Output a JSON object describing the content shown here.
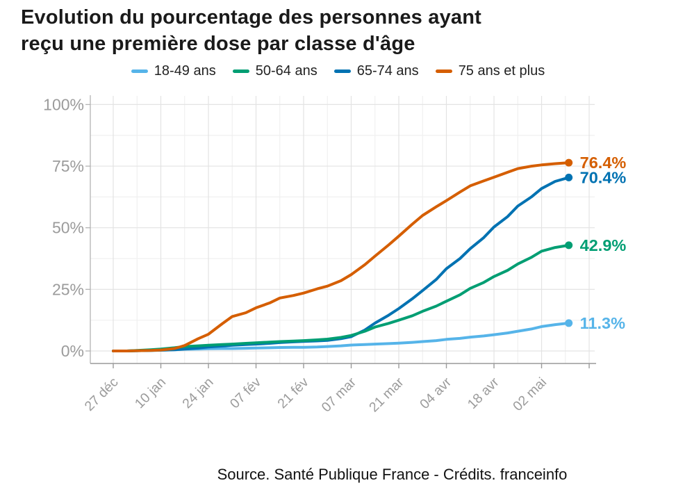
{
  "title": {
    "line1": "Evolution du pourcentage des personnes ayant",
    "line2": "reçu une première dose par classe d'âge"
  },
  "source_text": "Source. Santé Publique France - Crédits. franceinfo",
  "colors": {
    "age_18_49": "#56B4E9",
    "age_50_64": "#009E73",
    "age_65_74": "#0072B2",
    "age_75_plus": "#D55E00",
    "axis_text": "#9b9b9b",
    "axis_line": "#9a9a9a",
    "grid_major": "#e3e3e3",
    "grid_minor": "#f0f0f0",
    "title_text": "#1a1a1a"
  },
  "chart_data": {
    "type": "line",
    "title": "Evolution du pourcentage des personnes ayant reçu une première dose par classe d'âge",
    "xlabel": "",
    "ylabel": "",
    "ylim": [
      0,
      100
    ],
    "grid": true,
    "legend_position": "top",
    "x_unit": "days since 27 déc",
    "x_ticks": [
      {
        "day": 0,
        "label": "27 déc"
      },
      {
        "day": 14,
        "label": "10 jan"
      },
      {
        "day": 28,
        "label": "24 jan"
      },
      {
        "day": 42,
        "label": "07 fév"
      },
      {
        "day": 56,
        "label": "21 fév"
      },
      {
        "day": 70,
        "label": "07 mar"
      },
      {
        "day": 84,
        "label": "21 mar"
      },
      {
        "day": 98,
        "label": "04 avr"
      },
      {
        "day": 112,
        "label": "18 avr"
      },
      {
        "day": 126,
        "label": "02 mai"
      },
      {
        "day": 140,
        "label": ""
      }
    ],
    "x_minor_days": [
      7,
      21,
      35,
      49,
      63,
      77,
      91,
      105,
      119,
      133
    ],
    "y_ticks": [
      {
        "value": 0,
        "label": "0%"
      },
      {
        "value": 25,
        "label": "25%"
      },
      {
        "value": 50,
        "label": "50%"
      },
      {
        "value": 75,
        "label": "75%"
      },
      {
        "value": 100,
        "label": "100%"
      }
    ],
    "y_minor": [
      12.5,
      37.5,
      62.5,
      87.5
    ],
    "days": [
      0,
      4,
      7,
      11,
      14,
      18,
      21,
      25,
      28,
      32,
      35,
      39,
      42,
      46,
      49,
      53,
      56,
      60,
      63,
      67,
      70,
      74,
      77,
      81,
      84,
      88,
      91,
      95,
      98,
      102,
      105,
      109,
      112,
      116,
      119,
      123,
      126,
      130,
      134
    ],
    "series": [
      {
        "name": "18-49 ans",
        "color": "#56B4E9",
        "end_label": "11.3%",
        "end_value": 11.3,
        "values": [
          0,
          0,
          0.1,
          0.2,
          0.3,
          0.5,
          0.7,
          0.8,
          0.9,
          1,
          1,
          1.1,
          1.2,
          1.3,
          1.4,
          1.5,
          1.5,
          1.6,
          1.8,
          2.1,
          2.4,
          2.6,
          2.8,
          3,
          3.2,
          3.5,
          3.8,
          4.2,
          4.7,
          5.1,
          5.6,
          6.1,
          6.6,
          7.3,
          8,
          8.9,
          9.9,
          10.7,
          11.3
        ]
      },
      {
        "name": "50-64 ans",
        "color": "#009E73",
        "end_label": "42.9%",
        "end_value": 42.9,
        "values": [
          0,
          0,
          0.2,
          0.5,
          0.8,
          1.3,
          1.8,
          2.1,
          2.3,
          2.6,
          2.8,
          3.1,
          3.3,
          3.6,
          3.8,
          4,
          4.2,
          4.5,
          4.8,
          5.5,
          6.3,
          8,
          9.7,
          11.2,
          12.5,
          14.3,
          16.1,
          18.2,
          20.2,
          22.8,
          25.4,
          27.8,
          30.2,
          32.7,
          35.3,
          38,
          40.5,
          42,
          42.9
        ]
      },
      {
        "name": "65-74 ans",
        "color": "#0072B2",
        "end_label": "70.4%",
        "end_value": 70.4,
        "values": [
          0,
          0,
          0.1,
          0.2,
          0.3,
          0.5,
          0.8,
          1.2,
          1.6,
          2,
          2.3,
          2.6,
          2.8,
          3.1,
          3.4,
          3.7,
          3.9,
          4.1,
          4.3,
          5,
          5.8,
          8.5,
          11.3,
          14.5,
          17.2,
          21.2,
          24.5,
          29,
          33.4,
          37.5,
          41.5,
          46,
          50.3,
          54.5,
          58.8,
          62.5,
          65.9,
          68.8,
          70.4
        ]
      },
      {
        "name": "75 ans et plus",
        "color": "#D55E00",
        "end_label": "76.4%",
        "end_value": 76.4,
        "values": [
          0,
          0,
          0.1,
          0.2,
          0.4,
          1,
          2.2,
          5,
          6.8,
          11,
          14,
          15.5,
          17.5,
          19.5,
          21.5,
          22.5,
          23.5,
          25.2,
          26.3,
          28.5,
          31,
          35,
          38.5,
          43,
          46.6,
          51.5,
          55,
          58.5,
          61,
          64.5,
          67,
          69,
          70.5,
          72.5,
          74,
          75,
          75.5,
          76,
          76.4
        ]
      }
    ],
    "draw_order": [
      0,
      2,
      1,
      3
    ]
  }
}
